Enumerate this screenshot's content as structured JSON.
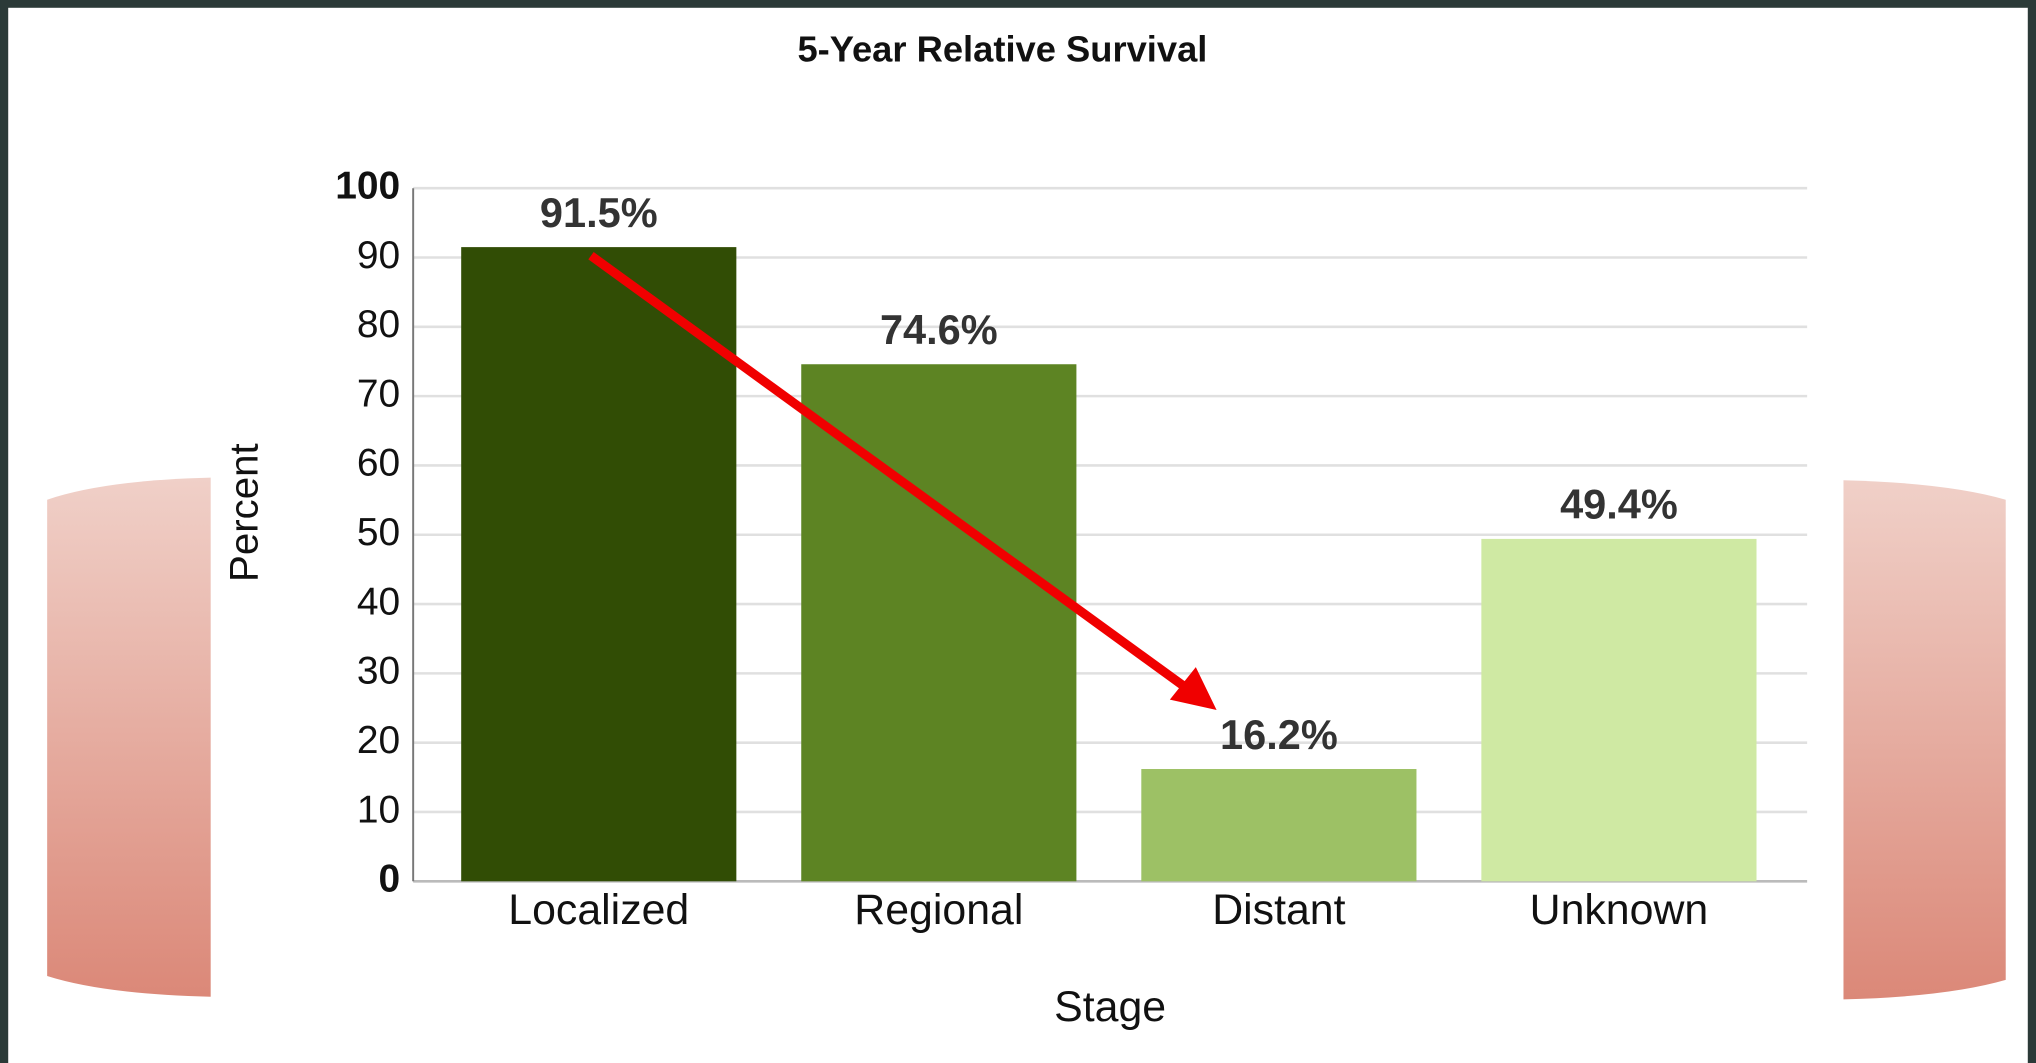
{
  "chart_data": {
    "type": "bar",
    "title": "5-Year Relative Survival",
    "x_label": "Stage",
    "y_label": "Percent",
    "categories": [
      "Localized",
      "Regional",
      "Distant",
      "Unknown"
    ],
    "values": [
      91.5,
      74.6,
      16.2,
      49.4
    ],
    "value_labels": [
      "91.5%",
      "74.6%",
      "16.2%",
      "49.4%"
    ],
    "colors": [
      "#314d05",
      "#5d8423",
      "#9dc165",
      "#cfe9a3"
    ],
    "ylim": [
      0,
      100
    ],
    "yticks": [
      0,
      10,
      20,
      30,
      40,
      50,
      60,
      70,
      80,
      90,
      100
    ],
    "grid": true
  }
}
